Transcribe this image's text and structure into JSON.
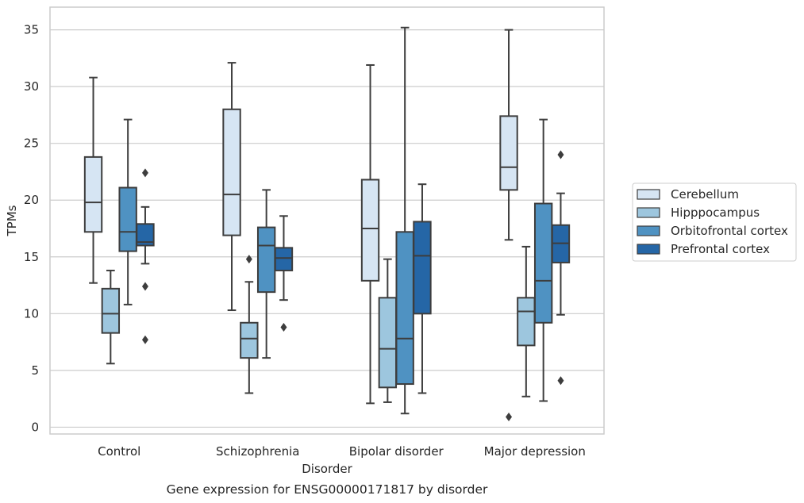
{
  "chart_data": {
    "type": "boxplot",
    "xlabel": "Disorder",
    "ylabel": "TPMs",
    "caption": "Gene expression for ENSG00000171817 by disorder",
    "ylim": [
      -0.6,
      37
    ],
    "yticks": [
      0,
      5,
      10,
      15,
      20,
      25,
      30,
      35
    ],
    "grid": "horizontal",
    "legend": {
      "placement": "right"
    },
    "categories": [
      "Control",
      "Schizophrenia",
      "Bipolar disorder",
      "Major depression"
    ],
    "series": [
      {
        "name": "Cerebellum",
        "color": "#d6e5f3",
        "boxes": [
          {
            "whislo": 12.7,
            "q1": 17.2,
            "med": 19.8,
            "q3": 23.8,
            "whishi": 30.8,
            "fliers": []
          },
          {
            "whislo": 10.3,
            "q1": 16.9,
            "med": 20.5,
            "q3": 28.0,
            "whishi": 32.1,
            "fliers": []
          },
          {
            "whislo": 2.1,
            "q1": 12.9,
            "med": 17.5,
            "q3": 21.8,
            "whishi": 31.9,
            "fliers": []
          },
          {
            "whislo": 16.5,
            "q1": 20.9,
            "med": 22.9,
            "q3": 27.4,
            "whishi": 35.0,
            "fliers": [
              0.9
            ]
          }
        ]
      },
      {
        "name": "Hipppocampus",
        "color": "#9dc6de",
        "boxes": [
          {
            "whislo": 5.6,
            "q1": 8.3,
            "med": 10.0,
            "q3": 12.2,
            "whishi": 13.8,
            "fliers": []
          },
          {
            "whislo": 3.0,
            "q1": 6.1,
            "med": 7.8,
            "q3": 9.2,
            "whishi": 12.8,
            "fliers": [
              14.8
            ]
          },
          {
            "whislo": 2.2,
            "q1": 3.5,
            "med": 6.9,
            "q3": 11.4,
            "whishi": 14.8,
            "fliers": []
          },
          {
            "whislo": 2.7,
            "q1": 7.2,
            "med": 10.2,
            "q3": 11.4,
            "whishi": 15.9,
            "fliers": []
          }
        ]
      },
      {
        "name": "Orbitofrontal cortex",
        "color": "#4f92c2",
        "boxes": [
          {
            "whislo": 10.8,
            "q1": 15.5,
            "med": 17.2,
            "q3": 21.1,
            "whishi": 27.1,
            "fliers": []
          },
          {
            "whislo": 6.1,
            "q1": 11.9,
            "med": 16.0,
            "q3": 17.6,
            "whishi": 20.9,
            "fliers": []
          },
          {
            "whislo": 1.2,
            "q1": 3.8,
            "med": 7.8,
            "q3": 17.2,
            "whishi": 35.2,
            "fliers": []
          },
          {
            "whislo": 2.3,
            "q1": 9.2,
            "med": 12.9,
            "q3": 19.7,
            "whishi": 27.1,
            "fliers": []
          }
        ]
      },
      {
        "name": "Prefrontal cortex",
        "color": "#2566a6",
        "boxes": [
          {
            "whislo": 14.4,
            "q1": 16.0,
            "med": 16.3,
            "q3": 17.9,
            "whishi": 19.4,
            "fliers": [
              22.4,
              12.4,
              7.7
            ]
          },
          {
            "whislo": 11.2,
            "q1": 13.8,
            "med": 14.9,
            "q3": 15.8,
            "whishi": 18.6,
            "fliers": [
              8.8
            ]
          },
          {
            "whislo": 3.0,
            "q1": 10.0,
            "med": 15.1,
            "q3": 18.1,
            "whishi": 21.4,
            "fliers": []
          },
          {
            "whislo": 9.9,
            "q1": 14.5,
            "med": 16.2,
            "q3": 17.8,
            "whishi": 20.6,
            "fliers": [
              24.0,
              4.1
            ]
          }
        ]
      }
    ]
  }
}
